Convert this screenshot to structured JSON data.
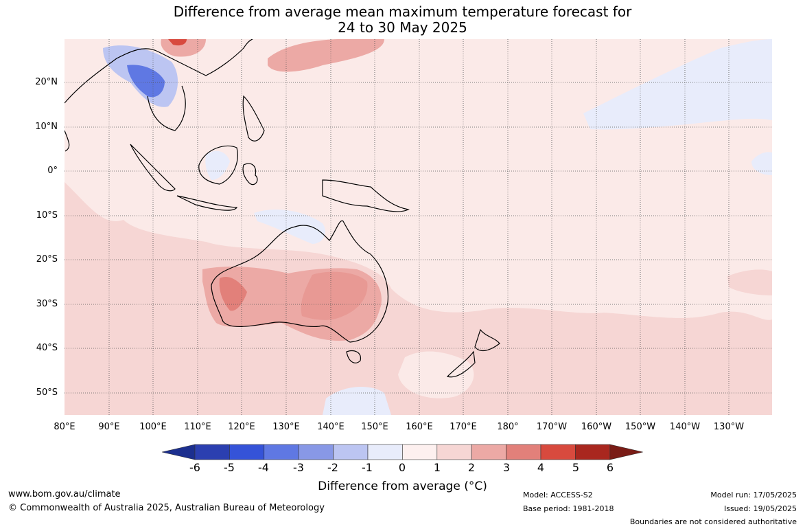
{
  "title": {
    "line1": "Difference from average mean maximum temperature forecast for",
    "line2": "24 to 30 May 2025"
  },
  "map": {
    "longitude_labels": [
      "80°E",
      "90°E",
      "100°E",
      "110°E",
      "120°E",
      "130°E",
      "140°E",
      "150°E",
      "160°E",
      "170°E",
      "180°",
      "170°W",
      "160°W",
      "150°W",
      "140°W",
      "130°W"
    ],
    "latitude_labels": [
      "20°N",
      "10°N",
      "0°",
      "10°S",
      "20°S",
      "30°S",
      "40°S",
      "50°S"
    ],
    "background_color": "#fbeae8"
  },
  "colorbar": {
    "ticks": [
      "-6",
      "-5",
      "-4",
      "-3",
      "-2",
      "-1",
      "0",
      "1",
      "2",
      "3",
      "4",
      "5",
      "6"
    ],
    "colors": [
      "#1c2f8f",
      "#2b3fb0",
      "#3553d8",
      "#5f78e3",
      "#8898e6",
      "#bcc5f2",
      "#e8ecfb",
      "#fdf0ef",
      "#f6d6d4",
      "#eca9a5",
      "#e2807a",
      "#d84a3e",
      "#a9271f",
      "#7a1c16"
    ],
    "label": "Difference from average",
    "label_unit": "(°C)"
  },
  "footer": {
    "website": "www.bom.gov.au/climate",
    "copyright": "© Commonwealth of Australia 2025, Australian Bureau of Meteorology",
    "model": "Model: ACCESS-S2",
    "base_period": "Base period: 1981-2018",
    "model_run": "Model run: 17/05/2025",
    "issued": "Issued: 19/05/2025",
    "disclaimer": "Boundaries are not considered authoritative"
  }
}
